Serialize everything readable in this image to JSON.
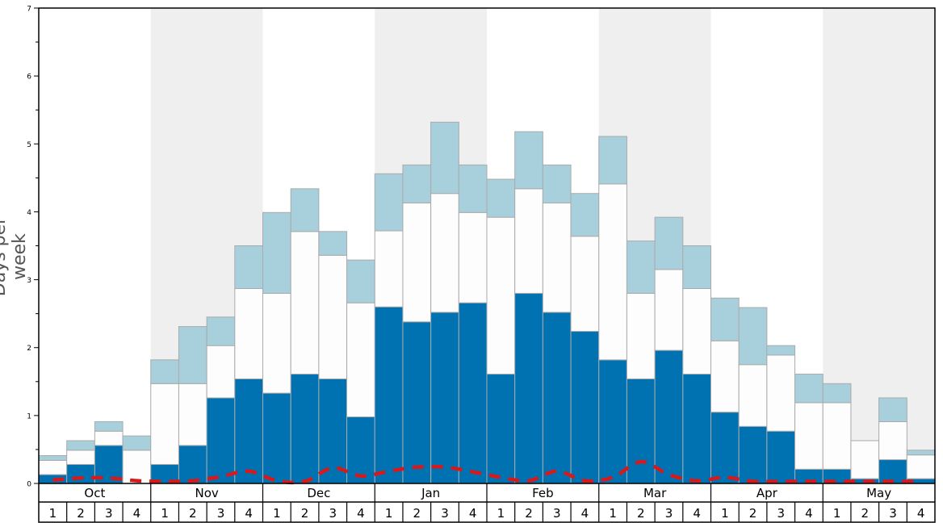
{
  "chart_data": {
    "type": "bar",
    "stacked": true,
    "ylabel": "Days per week",
    "ylim": [
      0,
      7
    ],
    "y_ticks": [
      "0",
      "1",
      "2",
      "3",
      "4",
      "5",
      "6",
      "7"
    ],
    "months": [
      "Oct",
      "Nov",
      "Dec",
      "Jan",
      "Feb",
      "Mar",
      "Apr",
      "May"
    ],
    "week_labels": [
      "1",
      "2",
      "3",
      "4"
    ],
    "shaded_months": [
      "Nov",
      "Jan",
      "Mar",
      "May"
    ],
    "grid": false,
    "colors": {
      "dark": "#0072b2",
      "white": "#fdfdfd",
      "light": "#a8d0dc",
      "line": "#d7191c",
      "shade": "#efefef",
      "bar_border": "#aaaaaa"
    },
    "series": [
      {
        "values": [
          0.13,
          0.28,
          0.56,
          0.0,
          0.28,
          0.56,
          1.26,
          1.54,
          1.33,
          1.61,
          1.54,
          0.98,
          2.6,
          2.38,
          2.52,
          2.66,
          1.61,
          2.8,
          2.52,
          2.24,
          1.82,
          1.54,
          1.96,
          1.61,
          1.05,
          0.84,
          0.77,
          0.21,
          0.21,
          0.07,
          0.35,
          0.07
        ]
      },
      {
        "values": [
          0.21,
          0.21,
          0.21,
          0.49,
          1.19,
          0.91,
          0.77,
          1.33,
          1.47,
          2.1,
          1.82,
          1.68,
          1.12,
          1.75,
          1.75,
          1.33,
          2.31,
          1.54,
          1.61,
          1.4,
          2.59,
          1.26,
          1.19,
          1.26,
          1.05,
          0.91,
          1.12,
          0.98,
          0.98,
          0.56,
          0.56,
          0.35
        ]
      },
      {
        "values": [
          0.07,
          0.14,
          0.14,
          0.21,
          0.35,
          0.84,
          0.42,
          0.63,
          1.19,
          0.63,
          0.35,
          0.63,
          0.84,
          0.56,
          1.05,
          0.7,
          0.56,
          0.84,
          0.56,
          0.63,
          0.7,
          0.77,
          0.77,
          0.63,
          0.63,
          0.84,
          0.14,
          0.42,
          0.28,
          0.0,
          0.35,
          0.07
        ]
      },
      {
        "type": "line",
        "style": "dashed",
        "values": [
          0.05,
          0.08,
          0.08,
          0.04,
          0.03,
          0.04,
          0.1,
          0.18,
          0.04,
          0.03,
          0.23,
          0.11,
          0.18,
          0.24,
          0.24,
          0.17,
          0.09,
          0.04,
          0.18,
          0.04,
          0.09,
          0.32,
          0.13,
          0.04,
          0.09,
          0.03,
          0.03,
          0.03,
          0.03,
          0.03,
          0.03,
          0.03
        ]
      }
    ]
  }
}
